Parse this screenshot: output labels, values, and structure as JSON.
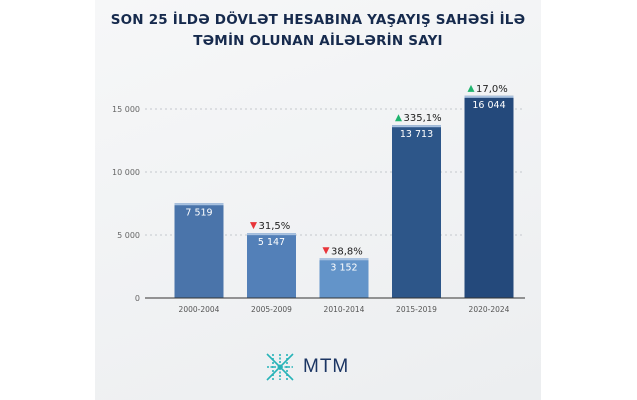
{
  "chart_data": {
    "type": "bar",
    "title": "SON 25 İLDƏ DÖVLƏT HESABINA YAŞAYIŞ SAHƏSİ İLƏ TƏMİN OLUNAN AİLƏLƏRİN SAYI",
    "title_lines": [
      "SON 25 İLDƏ DÖVLƏT HESABINA YAŞAYIŞ SAHƏSİ İLƏ",
      "TƏMİN OLUNAN AİLƏLƏRİN SAYI"
    ],
    "categories": [
      "2000-2004",
      "2005-2009",
      "2010-2014",
      "2015-2019",
      "2020-2024"
    ],
    "values": [
      7519,
      5147,
      3152,
      13713,
      16044
    ],
    "value_labels": [
      "7 519",
      "5 147",
      "3 152",
      "13 713",
      "16 044"
    ],
    "changes": [
      null,
      {
        "direction": "down",
        "label": "31,5%"
      },
      {
        "direction": "down",
        "label": "38,8%"
      },
      {
        "direction": "up",
        "label": "335,1%"
      },
      {
        "direction": "up",
        "label": "17,0%"
      }
    ],
    "yticks": [
      0,
      5000,
      10000,
      15000
    ],
    "ytick_labels": [
      "0",
      "5 000",
      "10 000",
      "15 000"
    ],
    "ylim": [
      0,
      15000
    ],
    "grid": true,
    "xlabel": "",
    "ylabel": "",
    "bar_colors": [
      "#4a74aa",
      "#5380b8",
      "#6394c9",
      "#2d5689",
      "#24497b"
    ],
    "up_color": "#1fb46e",
    "down_color": "#e8353a"
  },
  "logo": {
    "text": "MTM"
  }
}
